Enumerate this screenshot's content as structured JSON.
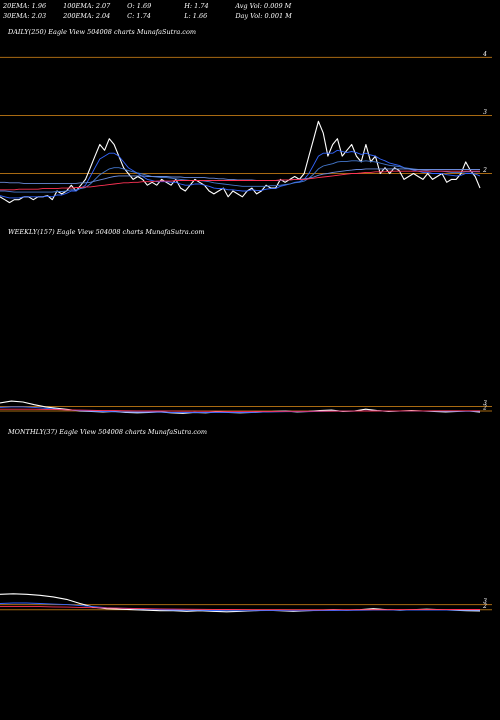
{
  "header": {
    "row1": [
      "20EMA: 1.96",
      "100EMA: 2.07",
      "O: 1.69",
      "H: 1.74",
      "Avg Vol: 0.009 M"
    ],
    "row2": [
      "30EMA: 2.03",
      "200EMA: 2.04",
      "C: 1.74",
      "L: 1.66",
      "Day Vol: 0.001 M"
    ]
  },
  "panels": {
    "daily": {
      "label": "DAILY(250) Eagle  View  504008  charts MunafaSutra.com"
    },
    "weekly": {
      "label": "WEEKLY(157) Eagle  View  504008  charts MunafaSutra.com"
    },
    "monthly": {
      "label": "MONTHLY(37) Eagle  View  504008  charts MunafaSutra.com"
    }
  },
  "chart_data": [
    {
      "type": "line",
      "panel": "daily",
      "ylim": [
        1.2,
        4.3
      ],
      "levels": [
        4,
        3,
        2
      ],
      "tick_labels": [
        "4",
        "3",
        "2"
      ],
      "series": [
        {
          "color": "#ffffff",
          "values": [
            1.6,
            1.55,
            1.5,
            1.55,
            1.55,
            1.6,
            1.6,
            1.55,
            1.6,
            1.6,
            1.62,
            1.55,
            1.7,
            1.65,
            1.7,
            1.8,
            1.7,
            1.8,
            1.9,
            2.1,
            2.3,
            2.5,
            2.4,
            2.6,
            2.5,
            2.3,
            2.1,
            2.0,
            1.9,
            1.95,
            1.9,
            1.8,
            1.85,
            1.8,
            1.9,
            1.85,
            1.8,
            1.9,
            1.75,
            1.7,
            1.8,
            1.9,
            1.85,
            1.8,
            1.7,
            1.65,
            1.7,
            1.75,
            1.6,
            1.7,
            1.65,
            1.6,
            1.7,
            1.75,
            1.65,
            1.7,
            1.8,
            1.75,
            1.75,
            1.9,
            1.85,
            1.9,
            1.95,
            1.9,
            2.0,
            2.3,
            2.6,
            2.9,
            2.7,
            2.3,
            2.5,
            2.6,
            2.3,
            2.4,
            2.5,
            2.3,
            2.2,
            2.5,
            2.2,
            2.3,
            2.0,
            2.1,
            2.0,
            2.1,
            2.05,
            1.9,
            1.95,
            2.0,
            1.95,
            1.9,
            2.0,
            1.9,
            1.95,
            2.0,
            1.85,
            1.9,
            1.9,
            2.0,
            2.2,
            2.05,
            1.95,
            1.75
          ]
        },
        {
          "color": "#3366ff",
          "values": [
            1.62,
            1.6,
            1.58,
            1.58,
            1.58,
            1.6,
            1.6,
            1.6,
            1.6,
            1.6,
            1.61,
            1.6,
            1.63,
            1.63,
            1.66,
            1.7,
            1.7,
            1.75,
            1.8,
            1.95,
            2.1,
            2.25,
            2.3,
            2.35,
            2.35,
            2.3,
            2.2,
            2.1,
            2.05,
            2.0,
            1.95,
            1.9,
            1.88,
            1.86,
            1.86,
            1.86,
            1.85,
            1.85,
            1.82,
            1.8,
            1.8,
            1.82,
            1.82,
            1.8,
            1.78,
            1.75,
            1.74,
            1.74,
            1.72,
            1.72,
            1.71,
            1.7,
            1.7,
            1.72,
            1.71,
            1.71,
            1.73,
            1.74,
            1.74,
            1.78,
            1.8,
            1.82,
            1.85,
            1.86,
            1.9,
            2.0,
            2.15,
            2.3,
            2.35,
            2.35,
            2.35,
            2.4,
            2.38,
            2.36,
            2.38,
            2.36,
            2.33,
            2.35,
            2.32,
            2.3,
            2.25,
            2.22,
            2.18,
            2.16,
            2.14,
            2.1,
            2.08,
            2.06,
            2.04,
            2.02,
            2.02,
            2.0,
            2.0,
            2.0,
            1.98,
            1.97,
            1.96,
            1.97,
            2.0,
            2.0,
            1.99,
            1.96
          ]
        },
        {
          "color": "#4477cc",
          "values": [
            1.7,
            1.7,
            1.69,
            1.68,
            1.68,
            1.68,
            1.68,
            1.68,
            1.68,
            1.68,
            1.68,
            1.68,
            1.69,
            1.69,
            1.7,
            1.72,
            1.72,
            1.74,
            1.76,
            1.82,
            1.9,
            1.98,
            2.03,
            2.08,
            2.1,
            2.1,
            2.08,
            2.05,
            2.03,
            2.01,
            1.99,
            1.97,
            1.95,
            1.94,
            1.93,
            1.93,
            1.92,
            1.91,
            1.9,
            1.89,
            1.88,
            1.88,
            1.88,
            1.87,
            1.86,
            1.84,
            1.83,
            1.82,
            1.81,
            1.8,
            1.79,
            1.78,
            1.78,
            1.78,
            1.78,
            1.78,
            1.78,
            1.79,
            1.79,
            1.8,
            1.81,
            1.82,
            1.84,
            1.85,
            1.87,
            1.92,
            1.99,
            2.08,
            2.13,
            2.15,
            2.17,
            2.2,
            2.21,
            2.21,
            2.22,
            2.22,
            2.21,
            2.22,
            2.21,
            2.2,
            2.18,
            2.16,
            2.14,
            2.13,
            2.12,
            2.1,
            2.09,
            2.08,
            2.07,
            2.06,
            2.05,
            2.04,
            2.04,
            2.04,
            2.03,
            2.02,
            2.02,
            2.02,
            2.03,
            2.03,
            2.03,
            2.03
          ]
        },
        {
          "color": "#6a8ad8",
          "values": [
            1.85,
            1.85,
            1.84,
            1.84,
            1.84,
            1.83,
            1.83,
            1.83,
            1.83,
            1.83,
            1.83,
            1.83,
            1.83,
            1.83,
            1.83,
            1.83,
            1.83,
            1.84,
            1.84,
            1.85,
            1.87,
            1.89,
            1.91,
            1.93,
            1.95,
            1.96,
            1.96,
            1.96,
            1.96,
            1.96,
            1.96,
            1.95,
            1.95,
            1.95,
            1.95,
            1.95,
            1.94,
            1.94,
            1.94,
            1.93,
            1.93,
            1.93,
            1.93,
            1.93,
            1.92,
            1.92,
            1.91,
            1.91,
            1.9,
            1.9,
            1.89,
            1.89,
            1.89,
            1.89,
            1.88,
            1.88,
            1.88,
            1.88,
            1.88,
            1.88,
            1.89,
            1.89,
            1.9,
            1.9,
            1.91,
            1.92,
            1.94,
            1.97,
            1.99,
            2.0,
            2.02,
            2.03,
            2.04,
            2.05,
            2.06,
            2.07,
            2.07,
            2.08,
            2.08,
            2.08,
            2.08,
            2.08,
            2.08,
            2.08,
            2.08,
            2.08,
            2.08,
            2.07,
            2.07,
            2.07,
            2.07,
            2.07,
            2.07,
            2.07,
            2.07,
            2.07,
            2.07,
            2.07,
            2.07,
            2.07,
            2.07,
            2.07
          ]
        },
        {
          "color": "#ff3355",
          "values": [
            1.72,
            1.72,
            1.72,
            1.72,
            1.73,
            1.73,
            1.73,
            1.73,
            1.73,
            1.74,
            1.74,
            1.74,
            1.74,
            1.75,
            1.75,
            1.75,
            1.76,
            1.76,
            1.77,
            1.77,
            1.78,
            1.79,
            1.8,
            1.81,
            1.82,
            1.83,
            1.84,
            1.84,
            1.85,
            1.85,
            1.86,
            1.86,
            1.86,
            1.87,
            1.87,
            1.87,
            1.87,
            1.88,
            1.88,
            1.88,
            1.88,
            1.88,
            1.88,
            1.88,
            1.88,
            1.88,
            1.88,
            1.88,
            1.88,
            1.88,
            1.88,
            1.88,
            1.88,
            1.88,
            1.88,
            1.88,
            1.88,
            1.88,
            1.88,
            1.89,
            1.89,
            1.89,
            1.9,
            1.9,
            1.9,
            1.91,
            1.92,
            1.93,
            1.94,
            1.95,
            1.96,
            1.97,
            1.98,
            1.99,
            2.0,
            2.0,
            2.01,
            2.02,
            2.02,
            2.03,
            2.03,
            2.03,
            2.04,
            2.04,
            2.04,
            2.04,
            2.04,
            2.04,
            2.04,
            2.04,
            2.04,
            2.04,
            2.04,
            2.04,
            2.04,
            2.04,
            2.04,
            2.04,
            2.04,
            2.04,
            2.04,
            2.04
          ]
        }
      ]
    },
    {
      "type": "line",
      "panel": "weekly",
      "ylim": [
        0,
        40
      ],
      "levels": [
        3,
        2
      ],
      "tick_labels": [
        "3",
        "2"
      ],
      "series": [
        {
          "color": "#ffffff",
          "values": [
            3.8,
            4.2,
            4.0,
            3.4,
            2.9,
            2.6,
            2.3,
            2.0,
            1.9,
            1.8,
            1.9,
            1.7,
            1.6,
            1.7,
            1.8,
            1.6,
            1.5,
            1.7,
            1.6,
            1.8,
            1.7,
            1.6,
            1.7,
            1.8,
            1.9,
            2.0,
            1.8,
            1.9,
            2.1,
            2.2,
            1.9,
            2.0,
            2.4,
            2.1,
            1.9,
            2.0,
            2.1,
            2.0,
            1.9,
            1.8,
            1.9,
            2.0,
            1.75
          ]
        },
        {
          "color": "#3366ff",
          "values": [
            2.8,
            2.9,
            2.9,
            2.8,
            2.6,
            2.4,
            2.2,
            2.1,
            2.0,
            1.9,
            1.85,
            1.8,
            1.75,
            1.75,
            1.75,
            1.7,
            1.7,
            1.7,
            1.7,
            1.7,
            1.7,
            1.7,
            1.7,
            1.75,
            1.8,
            1.85,
            1.85,
            1.85,
            1.9,
            1.95,
            1.95,
            1.95,
            2.05,
            2.05,
            2.0,
            2.0,
            2.0,
            2.0,
            2.0,
            1.95,
            1.95,
            1.96,
            1.96
          ]
        },
        {
          "color": "#ff3355",
          "values": [
            2.4,
            2.4,
            2.4,
            2.4,
            2.35,
            2.3,
            2.25,
            2.2,
            2.15,
            2.1,
            2.08,
            2.05,
            2.02,
            2.0,
            2.0,
            1.98,
            1.96,
            1.95,
            1.94,
            1.93,
            1.92,
            1.92,
            1.91,
            1.91,
            1.92,
            1.93,
            1.93,
            1.94,
            1.95,
            1.96,
            1.97,
            1.98,
            2.0,
            2.01,
            2.02,
            2.02,
            2.03,
            2.03,
            2.04,
            2.04,
            2.04,
            2.04,
            2.04
          ]
        }
      ]
    },
    {
      "type": "line",
      "panel": "monthly",
      "ylim": [
        0,
        35
      ],
      "levels": [
        3,
        2
      ],
      "tick_labels": [
        "3",
        "2"
      ],
      "series": [
        {
          "color": "#ffffff",
          "values": [
            5.0,
            5.1,
            5.0,
            4.8,
            4.5,
            4.0,
            3.2,
            2.5,
            2.2,
            2.1,
            2.0,
            1.9,
            1.8,
            1.8,
            1.7,
            1.8,
            1.7,
            1.6,
            1.7,
            1.8,
            1.9,
            1.8,
            1.7,
            1.8,
            1.9,
            2.0,
            1.9,
            2.0,
            2.2,
            2.0,
            1.9,
            2.0,
            2.1,
            2.0,
            1.9,
            1.8,
            1.75
          ]
        },
        {
          "color": "#3366ff",
          "values": [
            3.2,
            3.3,
            3.3,
            3.2,
            3.1,
            3.0,
            2.8,
            2.6,
            2.4,
            2.3,
            2.2,
            2.1,
            2.0,
            1.95,
            1.9,
            1.9,
            1.85,
            1.8,
            1.8,
            1.8,
            1.82,
            1.82,
            1.8,
            1.8,
            1.82,
            1.85,
            1.86,
            1.88,
            1.92,
            1.93,
            1.93,
            1.94,
            1.95,
            1.95,
            1.95,
            1.94,
            1.93
          ]
        },
        {
          "color": "#ff3355",
          "values": [
            2.6,
            2.6,
            2.6,
            2.6,
            2.55,
            2.5,
            2.45,
            2.4,
            2.35,
            2.3,
            2.25,
            2.2,
            2.15,
            2.12,
            2.1,
            2.08,
            2.06,
            2.04,
            2.02,
            2.01,
            2.0,
            2.0,
            1.99,
            1.99,
            1.99,
            2.0,
            2.0,
            2.0,
            2.01,
            2.01,
            2.02,
            2.02,
            2.03,
            2.03,
            2.04,
            2.04,
            2.04
          ]
        }
      ]
    }
  ]
}
